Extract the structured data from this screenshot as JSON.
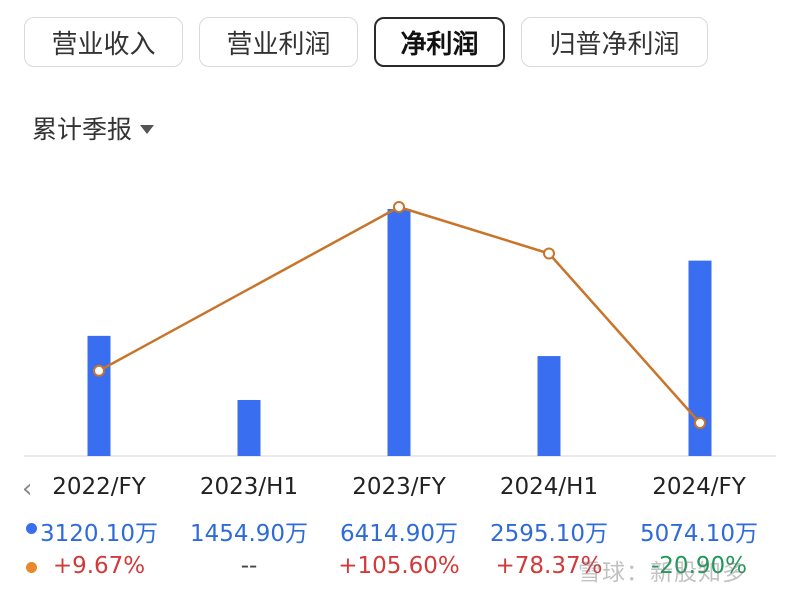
{
  "tabs": [
    {
      "label": "营业收入",
      "active": false
    },
    {
      "label": "营业利润",
      "active": false
    },
    {
      "label": "净利润",
      "active": true
    },
    {
      "label": "归普净利润",
      "active": false
    }
  ],
  "period_selector": {
    "label": "累计季报",
    "icon": "caret-down-icon"
  },
  "colors": {
    "bar": "#3a6ef0",
    "line": "#c8742a",
    "value_text": "#2f6bd8",
    "positive": "#d23a3a",
    "negative": "#1e9a5b",
    "dot_growth": "#e8892b"
  },
  "chart_data": {
    "type": "bar",
    "categories": [
      "2022/FY",
      "2023/H1",
      "2023/FY",
      "2024/H1",
      "2024/FY"
    ],
    "series": [
      {
        "values": [
          3120.1,
          1454.9,
          6414.9,
          2595.1,
          5074.1
        ],
        "unit": "万",
        "type": "bar"
      },
      {
        "values": [
          9.67,
          null,
          105.6,
          78.37,
          -20.9
        ],
        "unit": "%",
        "type": "line"
      }
    ],
    "value_labels": [
      "3120.10万",
      "1454.90万",
      "6414.90万",
      "2595.10万",
      "5074.10万"
    ],
    "growth_labels": [
      "+9.67%",
      "--",
      "+105.60%",
      "+78.37%",
      "-20.90%"
    ],
    "grid": false
  },
  "watermark": "雪球：新股知多"
}
